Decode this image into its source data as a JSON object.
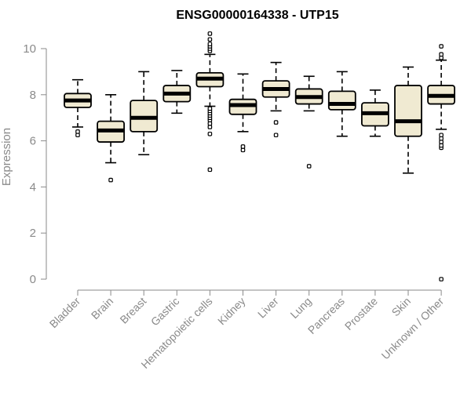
{
  "chart_data": {
    "type": "box",
    "title": "ENSG00000164338 - UTP15",
    "ylabel": "Expression",
    "xlabel": "",
    "ylim": [
      0,
      10.7
    ],
    "yticks": [
      "0",
      "2",
      "4",
      "6",
      "8",
      "10"
    ],
    "grid": false,
    "legend": "none",
    "box_fill": "#f0ead2",
    "box_stroke": "#000000",
    "categories": [
      "Bladder",
      "Brain",
      "Breast",
      "Gastric",
      "Hematopoietic cells",
      "Kidney",
      "Liver",
      "Lung",
      "Pancreas",
      "Prostate",
      "Skin",
      "Unknown / Other"
    ],
    "boxes": [
      {
        "q1": 7.45,
        "median": 7.75,
        "q3": 8.05,
        "whisker_low": 6.6,
        "whisker_high": 8.65,
        "outliers": [
          6.25,
          6.4
        ]
      },
      {
        "q1": 5.95,
        "median": 6.45,
        "q3": 6.85,
        "whisker_low": 5.05,
        "whisker_high": 8.0,
        "outliers": [
          4.3
        ]
      },
      {
        "q1": 6.4,
        "median": 7.0,
        "q3": 7.75,
        "whisker_low": 5.4,
        "whisker_high": 9.0,
        "outliers": []
      },
      {
        "q1": 7.7,
        "median": 8.05,
        "q3": 8.4,
        "whisker_low": 7.2,
        "whisker_high": 9.05,
        "outliers": []
      },
      {
        "q1": 8.35,
        "median": 8.7,
        "q3": 8.95,
        "whisker_low": 7.5,
        "whisker_high": 9.75,
        "outliers": [
          4.75,
          6.3,
          6.6,
          6.75,
          6.9,
          7.0,
          7.1,
          7.2,
          7.3,
          7.4,
          9.9,
          10.0,
          10.1,
          10.2,
          10.4,
          10.65
        ]
      },
      {
        "q1": 7.15,
        "median": 7.55,
        "q3": 7.8,
        "whisker_low": 6.4,
        "whisker_high": 8.9,
        "outliers": [
          5.6,
          5.75
        ]
      },
      {
        "q1": 7.9,
        "median": 8.25,
        "q3": 8.6,
        "whisker_low": 7.3,
        "whisker_high": 9.4,
        "outliers": [
          6.25,
          6.8
        ]
      },
      {
        "q1": 7.6,
        "median": 7.9,
        "q3": 8.25,
        "whisker_low": 7.3,
        "whisker_high": 8.8,
        "outliers": [
          4.9
        ]
      },
      {
        "q1": 7.35,
        "median": 7.6,
        "q3": 8.15,
        "whisker_low": 6.2,
        "whisker_high": 9.0,
        "outliers": []
      },
      {
        "q1": 6.65,
        "median": 7.2,
        "q3": 7.65,
        "whisker_low": 6.2,
        "whisker_high": 8.2,
        "outliers": []
      },
      {
        "q1": 6.2,
        "median": 6.85,
        "q3": 8.4,
        "whisker_low": 4.6,
        "whisker_high": 9.2,
        "outliers": []
      },
      {
        "q1": 7.6,
        "median": 7.95,
        "q3": 8.4,
        "whisker_low": 6.5,
        "whisker_high": 9.5,
        "outliers": [
          0.0,
          5.7,
          5.8,
          5.95,
          6.1,
          6.25,
          9.6,
          9.75,
          10.1
        ]
      }
    ]
  }
}
